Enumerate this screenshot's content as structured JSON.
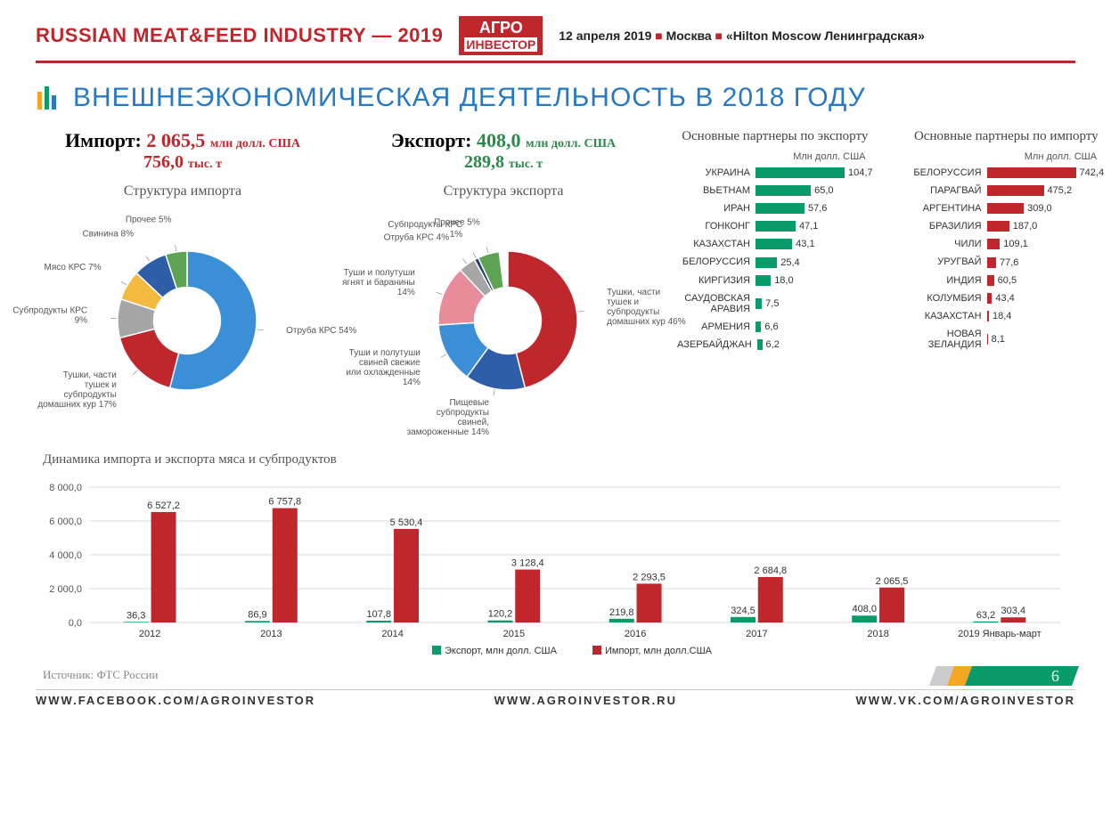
{
  "header": {
    "title": "RUSSIAN MEAT&FEED INDUSTRY — 2019",
    "logo_top": "АГРО",
    "logo_bottom": "ИНВЕСТОР",
    "date": "12 апреля 2019",
    "city": "Москва",
    "venue": "«Hilton Moscow Ленинградская»"
  },
  "main_title": "ВНЕШНЕЭКОНОМИЧЕСКАЯ ДЕЯТЕЛЬНОСТЬ В 2018 ГОДУ",
  "import_block": {
    "label": "Импорт:",
    "value": "2 065,5",
    "unit": "млн долл. США",
    "value2": "756,0",
    "unit2": "тыс. т",
    "chart_title": "Структура импорта",
    "color_value": "#c0272c"
  },
  "export_block": {
    "label": "Экспорт:",
    "value": "408,0",
    "unit": "млн долл. США",
    "value2": "289,8",
    "unit2": "тыс. т",
    "chart_title": "Структура экспорта",
    "color_value": "#2a8a4a"
  },
  "import_donut": {
    "type": "donut",
    "inner_radius_ratio": 0.48,
    "background_color": "#ffffff",
    "slices": [
      {
        "label": "Отруба КРС",
        "pct": 54,
        "color": "#3b8fd6"
      },
      {
        "label": "Тушки, части тушек и субпродукты домашних кур",
        "pct": 17,
        "color": "#c0272c"
      },
      {
        "label": "Субпродукты КРС",
        "pct": 9,
        "color": "#a6a6a6"
      },
      {
        "label": "Мясо КРС",
        "pct": 7,
        "color": "#f4b93f"
      },
      {
        "label": "Свинина",
        "pct": 8,
        "color": "#2f5ea8"
      },
      {
        "label": "Прочее",
        "pct": 5,
        "color": "#5ea354"
      }
    ]
  },
  "export_donut": {
    "type": "donut",
    "inner_radius_ratio": 0.48,
    "background_color": "#ffffff",
    "slices": [
      {
        "label": "Тушки, части тушек и субпродукты домашних кур",
        "pct": 46,
        "color": "#c0272c"
      },
      {
        "label": "Пищевые субпродукты свиней, замороженные",
        "pct": 14,
        "color": "#2f5ea8"
      },
      {
        "label": "Туши и полутуши свиней свежие или охлажденные",
        "pct": 14,
        "color": "#3b8fd6"
      },
      {
        "label": "Туши и полутуши ягнят и баранины",
        "pct": 14,
        "color": "#e88b9a"
      },
      {
        "label": "Отруба КРС",
        "pct": 4,
        "color": "#a6a6a6"
      },
      {
        "label": "Субпродукты КРС",
        "pct": 1,
        "color": "#2a3f6f"
      },
      {
        "label": "Прочее",
        "pct": 5,
        "color": "#5ea354"
      }
    ]
  },
  "partners_export": {
    "title": "Основные партнеры по экспорту",
    "unit": "Млн долл. США",
    "bar_color": "#0a9b6b",
    "max": 104.7,
    "items": [
      {
        "name": "УКРАИНА",
        "value": 104.7
      },
      {
        "name": "ВЬЕТНАМ",
        "value": 65.0
      },
      {
        "name": "ИРАН",
        "value": 57.6
      },
      {
        "name": "ГОНКОНГ",
        "value": 47.1
      },
      {
        "name": "КАЗАХСТАН",
        "value": 43.1
      },
      {
        "name": "БЕЛОРУССИЯ",
        "value": 25.4
      },
      {
        "name": "КИРГИЗИЯ",
        "value": 18.0
      },
      {
        "name": "САУДОВСКАЯ АРАВИЯ",
        "value": 7.5
      },
      {
        "name": "АРМЕНИЯ",
        "value": 6.6
      },
      {
        "name": "АЗЕРБАЙДЖАН",
        "value": 6.2
      }
    ]
  },
  "partners_import": {
    "title": "Основные партнеры по импорту",
    "unit": "Млн долл. США",
    "bar_color": "#c0272c",
    "max": 742.4,
    "items": [
      {
        "name": "БЕЛОРУССИЯ",
        "value": 742.4
      },
      {
        "name": "ПАРАГВАЙ",
        "value": 475.2
      },
      {
        "name": "АРГЕНТИНА",
        "value": 309.0
      },
      {
        "name": "БРАЗИЛИЯ",
        "value": 187.0
      },
      {
        "name": "ЧИЛИ",
        "value": 109.1
      },
      {
        "name": "УРУГВАЙ",
        "value": 77.6
      },
      {
        "name": "ИНДИЯ",
        "value": 60.5
      },
      {
        "name": "КОЛУМБИЯ",
        "value": 43.4
      },
      {
        "name": "КАЗАХСТАН",
        "value": 18.4
      },
      {
        "name": "НОВАЯ ЗЕЛАНДИЯ",
        "value": 8.1
      }
    ]
  },
  "dynamics": {
    "type": "grouped_bar",
    "title": "Динамика импорта и экспорта мяса и субпродуктов",
    "ylim": [
      0,
      8000
    ],
    "ytick_step": 2000,
    "ylabel_format": "#,##0.0",
    "categories": [
      "2012",
      "2013",
      "2014",
      "2015",
      "2016",
      "2017",
      "2018",
      "2019 Январь-март"
    ],
    "series": [
      {
        "name": "Экспорт, млн долл. США",
        "color": "#0a9b6b",
        "values": [
          36.3,
          86.9,
          107.8,
          120.2,
          219.8,
          324.5,
          408.0,
          63.2
        ]
      },
      {
        "name": "Импорт, млн долл.США",
        "color": "#c0272c",
        "values": [
          6527.2,
          6757.8,
          5530.4,
          3128.4,
          2293.5,
          2684.8,
          2065.5,
          303.4
        ]
      }
    ],
    "grid_color": "#d9d9d9",
    "label_fontsize": 11
  },
  "source": "Источник: ФТС России",
  "footer": {
    "left": "WWW.FACEBOOK.COM/AGROINVESTOR",
    "center": "WWW.AGROINVESTOR.RU",
    "right": "WWW.VK.COM/AGROINVESTOR"
  },
  "page_number": "6"
}
